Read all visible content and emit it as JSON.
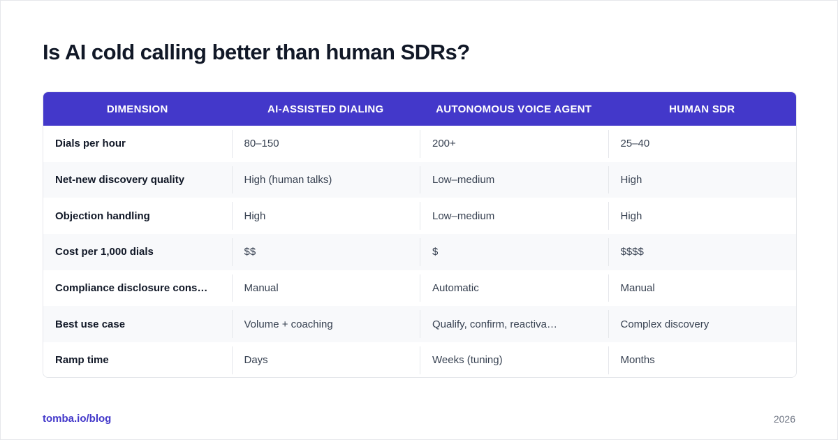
{
  "title": "Is AI cold calling better than human SDRs?",
  "table": {
    "headers": [
      "DIMENSION",
      "AI-ASSISTED DIALING",
      "AUTONOMOUS VOICE AGENT",
      "HUMAN SDR"
    ],
    "rows": [
      [
        "Dials per hour",
        "80–150",
        "200+",
        "25–40"
      ],
      [
        "Net-new discovery quality",
        "High (human talks)",
        "Low–medium",
        "High"
      ],
      [
        "Objection handling",
        "High",
        "Low–medium",
        "High"
      ],
      [
        "Cost per 1,000 dials",
        "$$",
        "$",
        "$$$$"
      ],
      [
        "Compliance disclosure cons…",
        "Manual",
        "Automatic",
        "Manual"
      ],
      [
        "Best use case",
        "Volume + coaching",
        "Qualify, confirm, reactiva…",
        "Complex discovery"
      ],
      [
        "Ramp time",
        "Days",
        "Weeks (tuning)",
        "Months"
      ]
    ]
  },
  "footer": {
    "link": "tomba.io/blog",
    "year": "2026"
  },
  "colors": {
    "accent": "#4338ca",
    "zebra": "#f8f9fb"
  }
}
